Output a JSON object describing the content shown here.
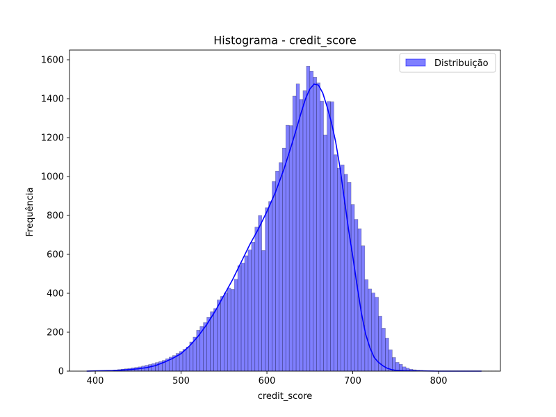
{
  "chart_data": {
    "type": "bar",
    "title": "Histograma - credit_score",
    "xlabel": "credit_score",
    "ylabel": "Frequência",
    "xlim": [
      370,
      872
    ],
    "ylim": [
      0,
      1600
    ],
    "xticks": [
      400,
      500,
      600,
      700,
      800
    ],
    "yticks": [
      0,
      200,
      400,
      600,
      800,
      1000,
      1200,
      1400,
      1600
    ],
    "grid": false,
    "legend": {
      "placement": "top-right",
      "entries": [
        "Distribuição"
      ]
    },
    "bin_width": 4,
    "bins_start": 390,
    "series": [
      {
        "name": "Distribuição",
        "color": "#0000ff",
        "values": [
          1,
          1,
          1,
          1,
          2,
          2,
          3,
          4,
          6,
          8,
          10,
          12,
          14,
          17,
          19,
          22,
          26,
          30,
          34,
          39,
          44,
          49,
          55,
          64,
          72,
          80,
          91,
          101,
          112,
          124,
          150,
          175,
          210,
          230,
          250,
          277,
          305,
          322,
          366,
          384,
          402,
          427,
          420,
          472,
          542,
          556,
          593,
          623,
          663,
          740,
          800,
          620,
          840,
          872,
          975,
          1028,
          1072,
          1146,
          1264,
          1262,
          1414,
          1476,
          1396,
          1441,
          1567,
          1542,
          1510,
          1482,
          1388,
          1214,
          1386,
          1384,
          1112,
          1043,
          1060,
          1012,
          970,
          856,
          780,
          732,
          644,
          470,
          422,
          402,
          380,
          282,
          220,
          170,
          110,
          70,
          45,
          35,
          22,
          15,
          10,
          7,
          5,
          4,
          3,
          2,
          2,
          1,
          1,
          1,
          1,
          1,
          1,
          1,
          1,
          1,
          1,
          1,
          1,
          1,
          1,
          1,
          1,
          1,
          1,
          1
        ]
      }
    ],
    "kde": {
      "color": "#0000ff",
      "x": [
        390,
        400,
        410,
        420,
        430,
        440,
        450,
        460,
        470,
        480,
        490,
        500,
        510,
        520,
        530,
        540,
        550,
        560,
        570,
        580,
        590,
        600,
        610,
        620,
        630,
        640,
        645,
        650,
        655,
        660,
        665,
        670,
        675,
        680,
        685,
        690,
        695,
        700,
        705,
        710,
        715,
        720,
        725,
        730,
        735,
        740,
        745,
        750,
        760,
        770,
        780,
        800,
        820,
        850
      ],
      "y": [
        0,
        1,
        2,
        3,
        5,
        8,
        12,
        18,
        28,
        45,
        65,
        90,
        130,
        180,
        240,
        310,
        390,
        470,
        560,
        650,
        730,
        820,
        920,
        1040,
        1180,
        1330,
        1400,
        1450,
        1475,
        1470,
        1430,
        1360,
        1280,
        1180,
        1050,
        890,
        730,
        590,
        440,
        300,
        190,
        120,
        70,
        45,
        28,
        15,
        8,
        4,
        2,
        1,
        1,
        0,
        0,
        0
      ]
    }
  }
}
